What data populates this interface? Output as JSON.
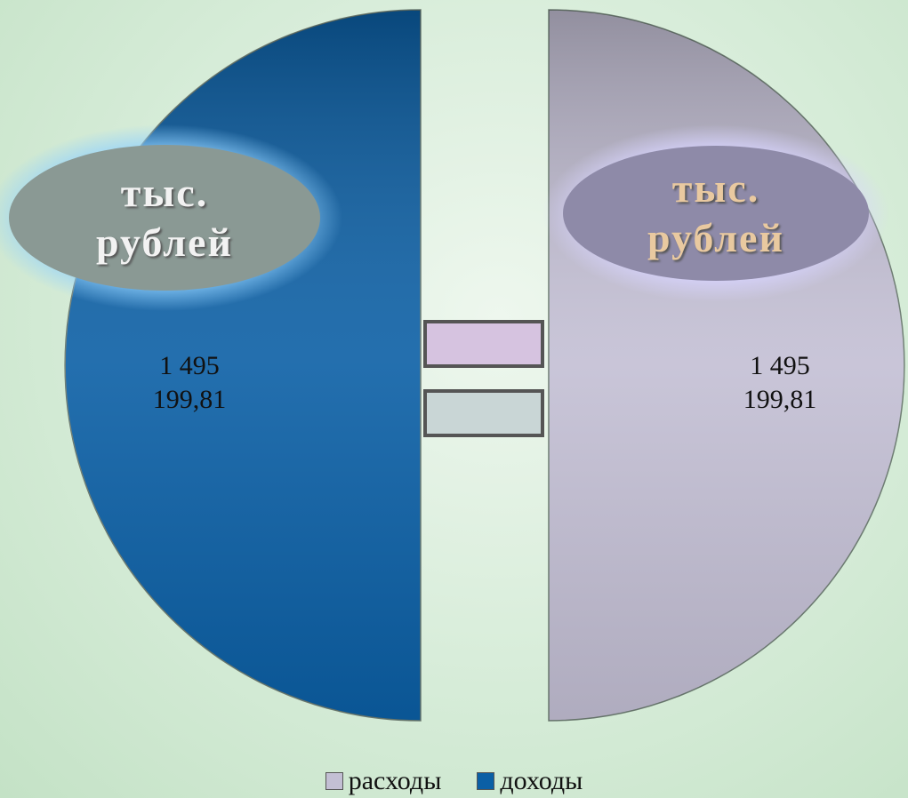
{
  "chart_data": {
    "type": "pie",
    "categories": [
      "расходы",
      "доходы"
    ],
    "values": [
      1495199.81,
      1495199.81
    ],
    "value_labels": [
      "1 495 199,81",
      "1 495 199,81"
    ],
    "colors": [
      "#c3bfd4",
      "#0b5fa5"
    ],
    "annotations": [
      "тыс. рублей",
      "тыс. рублей"
    ],
    "legend": "bottom"
  }
}
